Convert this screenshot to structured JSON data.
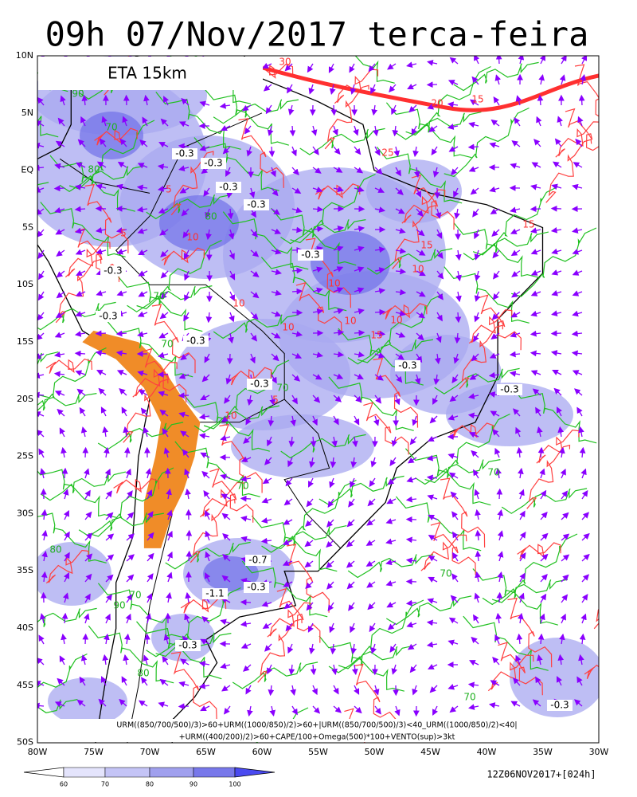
{
  "header": {
    "title": "09h 07/Nov/2017 terca-feira",
    "model": "ETA 15km"
  },
  "map": {
    "lat_labels": [
      "10N",
      "5N",
      "EQ",
      "5S",
      "10S",
      "15S",
      "20S",
      "25S",
      "30S",
      "35S",
      "40S",
      "45S",
      "50S"
    ],
    "lon_labels": [
      "80W",
      "75W",
      "70W",
      "65W",
      "60W",
      "55W",
      "50W",
      "45W",
      "40W",
      "35W",
      "30W"
    ],
    "omega_labels": [
      "-0.3",
      "-0.3",
      "-0.3",
      "-0.3",
      "-0.3",
      "-0.3",
      "-0.3",
      "-0.3",
      "-0.3",
      "-0.3",
      "-0.3",
      "-0.3",
      "-0.3",
      "-0.7",
      "-1.1",
      "-0.3"
    ],
    "humidity_labels": [
      "90",
      "70",
      "80",
      "80",
      "70",
      "70",
      "70",
      "80",
      "90",
      "70",
      "80",
      "70",
      "70",
      "70",
      "70"
    ],
    "cape_labels": [
      "30",
      "20",
      "15",
      "25",
      "5",
      "5",
      "10",
      "10",
      "10",
      "10",
      "10",
      "15",
      "10",
      "15",
      "10",
      "10",
      "5",
      "15"
    ]
  },
  "caption": [
    "URM((850/700/500)/3)>60+URM((1000/850)/2)>60+|URM((850/700/500)/3)<40_URM((1000/850)/2)<40|",
    "+URM((400/200)/2)>60+CAPE/100+Omega(500)*100+VENTO(sup)>3kt"
  ],
  "colorbar": {
    "labels": [
      "60",
      "70",
      "80",
      "90",
      "100"
    ]
  },
  "footer": {
    "run": "12Z06NOV2017+[024h]"
  }
}
